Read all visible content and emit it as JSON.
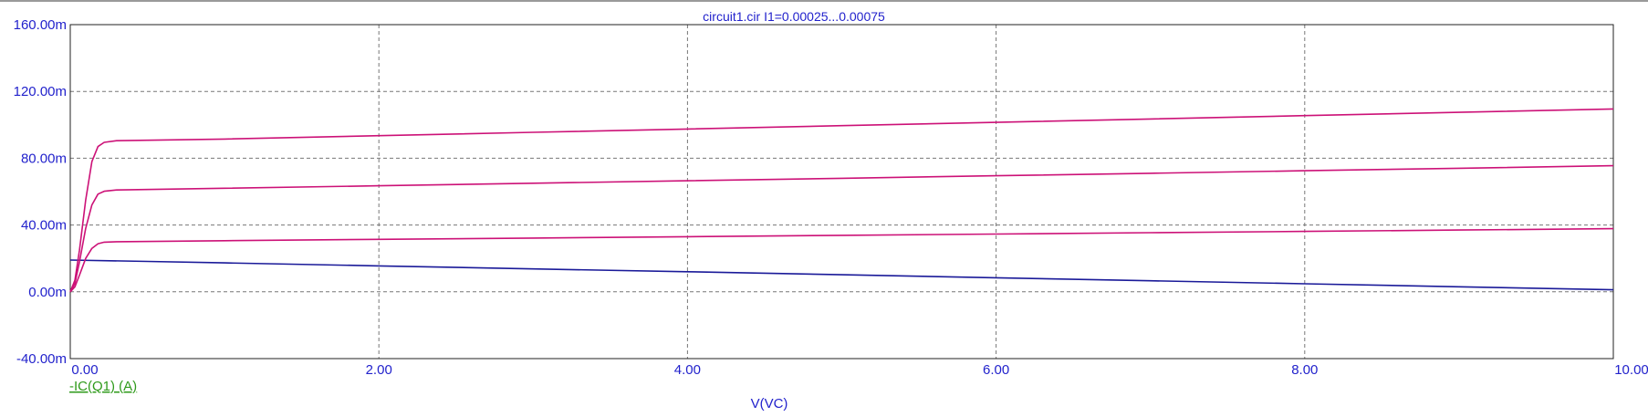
{
  "chart_data": {
    "type": "line",
    "title": "circuit1.cir I1=0.00025...0.00075",
    "xlabel": "V(VC)",
    "ylabel": "-IC(Q1) (A)",
    "xlim": [
      0,
      10
    ],
    "ylim": [
      -40,
      160
    ],
    "x_ticks": [
      0,
      2,
      4,
      6,
      8,
      10
    ],
    "x_tick_labels": [
      "0.00",
      "2.00",
      "4.00",
      "6.00",
      "8.00",
      "10.00"
    ],
    "y_ticks": [
      -40,
      0,
      40,
      80,
      120,
      160
    ],
    "y_tick_labels": [
      "-40.00m",
      "0.00m",
      "40.00m",
      "80.00m",
      "120.00m",
      "160.00m"
    ],
    "grid": true,
    "series": [
      {
        "color": "#1a1a99",
        "x": [
          0,
          0.5,
          1,
          2,
          3,
          4,
          5,
          6,
          7,
          8,
          9,
          10
        ],
        "y": [
          19,
          18.2,
          17.3,
          15.5,
          13.7,
          12,
          10.2,
          8.4,
          6.6,
          4.8,
          3,
          1.2
        ]
      },
      {
        "color": "#cc1177",
        "x": [
          0,
          0.03,
          0.06,
          0.1,
          0.14,
          0.18,
          0.22,
          0.3,
          1,
          2,
          3,
          4,
          5,
          6,
          7,
          8,
          9,
          10
        ],
        "y": [
          0,
          3,
          10,
          20,
          26,
          28.8,
          29.7,
          30,
          30.6,
          31.4,
          32.2,
          33,
          33.8,
          34.6,
          35.4,
          36.2,
          37,
          37.8
        ]
      },
      {
        "color": "#cc1177",
        "x": [
          0,
          0.03,
          0.06,
          0.1,
          0.14,
          0.18,
          0.22,
          0.3,
          1,
          2,
          3,
          4,
          5,
          6,
          7,
          8,
          9,
          10
        ],
        "y": [
          0,
          5,
          18,
          38,
          52,
          58.5,
          60.2,
          61,
          62,
          63.5,
          65,
          66.5,
          68,
          69.5,
          71,
          72.5,
          74,
          75.5
        ]
      },
      {
        "color": "#cc1177",
        "x": [
          0,
          0.03,
          0.06,
          0.1,
          0.14,
          0.18,
          0.22,
          0.3,
          1,
          2,
          3,
          4,
          5,
          6,
          7,
          8,
          9,
          10
        ],
        "y": [
          0,
          7,
          25,
          55,
          78,
          87,
          89.5,
          90.5,
          91.5,
          93.5,
          95.5,
          97.5,
          99.5,
          101.5,
          103.5,
          105.5,
          107.5,
          109.5
        ]
      }
    ]
  }
}
